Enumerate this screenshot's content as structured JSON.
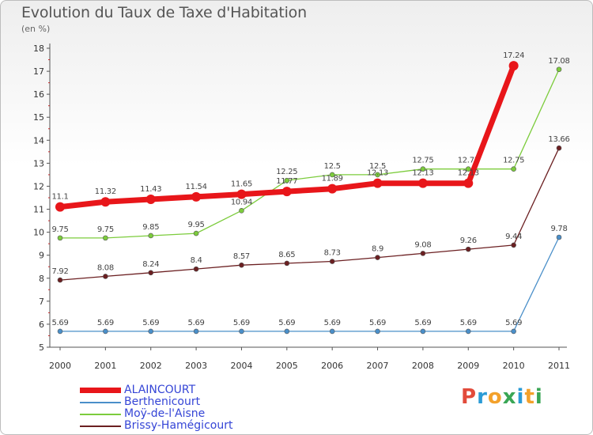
{
  "header": {
    "title": "Evolution du Taux de Taxe d'Habitation",
    "unit": "(en %)"
  },
  "brand": {
    "letters": [
      "P",
      "r",
      "o",
      "x",
      "i",
      "t",
      "i"
    ],
    "colors": [
      "#e24b3b",
      "#2a9bd6",
      "#f3a12b",
      "#3aa655",
      "#2a9bd6",
      "#f3a12b",
      "#3aa655"
    ]
  },
  "chart_data": {
    "type": "line",
    "x": [
      "2000",
      "2001",
      "2002",
      "2003",
      "2004",
      "2005",
      "2006",
      "2007",
      "2008",
      "2009",
      "2010",
      "2011"
    ],
    "ylim": [
      5,
      18
    ],
    "yticks": [
      "5",
      "6",
      "7",
      "8",
      "9",
      "10",
      "11",
      "12",
      "13",
      "14",
      "15",
      "16",
      "17",
      "18"
    ],
    "grid": false,
    "legend_position": "bottom-left",
    "series": [
      {
        "name": "ALAINCOURT",
        "color": "#e8161a",
        "text_color": "#3545d6",
        "thick": true,
        "values": [
          11.1,
          11.32,
          11.43,
          11.54,
          11.65,
          11.77,
          11.89,
          12.13,
          12.13,
          12.13,
          17.24,
          null
        ],
        "labels": [
          "11.1",
          "11.32",
          "11.43",
          "11.54",
          "11.65",
          "11.77",
          "11.89",
          "12.13",
          "12.13",
          "12.13",
          "17.24",
          ""
        ]
      },
      {
        "name": "Berthenicourt",
        "color": "#4a8fc9",
        "text_color": "#3545d6",
        "thick": false,
        "values": [
          5.69,
          5.69,
          5.69,
          5.69,
          5.69,
          5.69,
          5.69,
          5.69,
          5.69,
          5.69,
          5.69,
          9.78
        ],
        "labels": [
          "5.69",
          "5.69",
          "5.69",
          "5.69",
          "5.69",
          "5.69",
          "5.69",
          "5.69",
          "5.69",
          "5.69",
          "5.69",
          "9.78"
        ]
      },
      {
        "name": "Moÿ-de-l'Aisne",
        "color": "#7ccc3c",
        "text_color": "#3545d6",
        "thick": false,
        "values": [
          9.75,
          9.75,
          9.85,
          9.95,
          10.94,
          12.25,
          12.5,
          12.5,
          12.75,
          12.75,
          12.75,
          17.08
        ],
        "labels": [
          "9.75",
          "9.75",
          "9.85",
          "9.95",
          "10.94",
          "12.25",
          "12.5",
          "12.5",
          "12.75",
          "12.75",
          "12.75",
          "17.08"
        ]
      },
      {
        "name": "Brissy-Hamégicourt",
        "color": "#6b1f21",
        "text_color": "#3545d6",
        "thick": false,
        "values": [
          7.92,
          8.08,
          8.24,
          8.4,
          8.57,
          8.65,
          8.73,
          8.9,
          9.08,
          9.26,
          9.44,
          13.66
        ],
        "labels": [
          "7.92",
          "8.08",
          "8.24",
          "8.4",
          "8.57",
          "8.65",
          "8.73",
          "8.9",
          "9.08",
          "9.26",
          "9.44",
          "13.66"
        ]
      }
    ]
  }
}
